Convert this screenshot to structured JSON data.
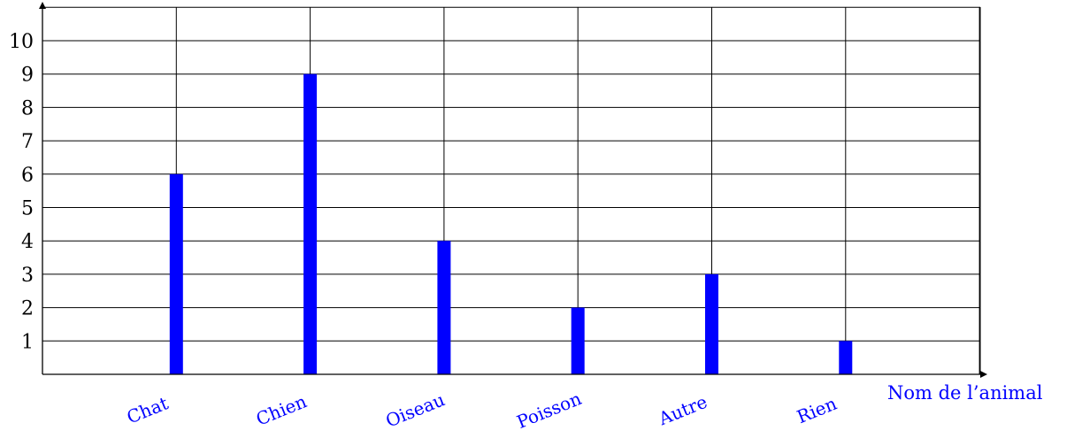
{
  "chart_data": {
    "type": "bar",
    "categories": [
      "Chat",
      "Chien",
      "Oiseau",
      "Poisson",
      "Autre",
      "Rien"
    ],
    "values": [
      6,
      9,
      4,
      2,
      3,
      1
    ],
    "xlabel": "Nom de l’animal",
    "ylabel": "",
    "ylim": [
      0,
      11
    ],
    "yticks": [
      1,
      2,
      3,
      4,
      5,
      6,
      7,
      8,
      9,
      10
    ],
    "grid": true,
    "bar_color": "#0000ff",
    "label_color": "#0000ff",
    "grid_color": "#000000"
  }
}
